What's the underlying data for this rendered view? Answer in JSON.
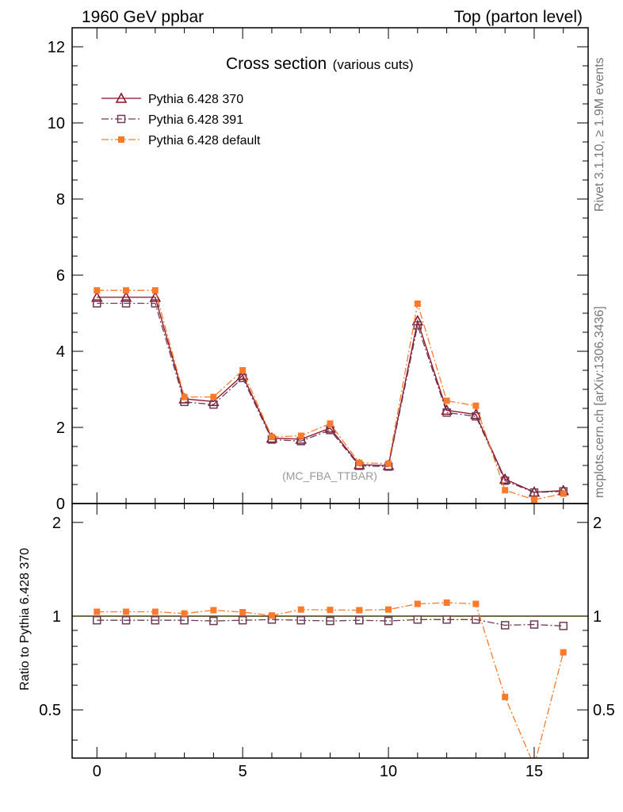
{
  "header": {
    "left": "1960 GeV ppbar",
    "right": "Top (parton level)"
  },
  "side_text": {
    "rivet": "Rivet 3.1.10, ≥ 1.9M events",
    "mcplots": "mcplots.cern.ch [arXiv:1306.3436]"
  },
  "plot_title": {
    "main": "Cross section",
    "sub": "(various cuts)"
  },
  "watermark": "(MC_FBA_TTBAR)",
  "ratio_ylabel": "Ratio to Pythia 6.428 370",
  "colors": {
    "p370": "#8b0e24",
    "p391": "#6e3a55",
    "pdefault": "#f97a2a",
    "refline": "#b8b800"
  },
  "chart_data": [
    {
      "type": "line",
      "panel": "main",
      "xlim": [
        -0.85,
        16.85
      ],
      "ylim": [
        0,
        12.5
      ],
      "yticks": [
        0,
        2,
        4,
        6,
        8,
        10,
        12
      ],
      "grid": false,
      "legend_position": "top-left",
      "x": [
        0,
        1,
        2,
        3,
        4,
        5,
        6,
        7,
        8,
        9,
        10,
        11,
        12,
        13,
        14,
        15,
        16
      ],
      "series": [
        {
          "name": "Pythia 6.428 370",
          "marker": "triangle-open",
          "line": "solid",
          "values": [
            5.42,
            5.42,
            5.42,
            2.75,
            2.68,
            3.37,
            1.72,
            1.69,
            1.98,
            1.02,
            1.0,
            4.8,
            2.45,
            2.34,
            0.64,
            0.3,
            0.34
          ]
        },
        {
          "name": "Pythia 6.428 391",
          "marker": "square-open",
          "line": "dash-dot",
          "values": [
            5.26,
            5.26,
            5.26,
            2.67,
            2.6,
            3.3,
            1.68,
            1.64,
            1.93,
            0.99,
            0.97,
            4.68,
            2.39,
            2.29,
            0.6,
            0.29,
            0.32
          ]
        },
        {
          "name": "Pythia 6.428 default",
          "marker": "square-filled",
          "line": "dash-dot",
          "values": [
            5.6,
            5.6,
            5.6,
            2.8,
            2.8,
            3.5,
            1.75,
            1.78,
            2.1,
            1.07,
            1.05,
            5.25,
            2.7,
            2.57,
            0.35,
            0.1,
            0.26
          ]
        }
      ]
    },
    {
      "type": "line",
      "panel": "ratio",
      "ylabel": "Ratio to Pythia 6.428 370",
      "xlim": [
        -0.85,
        16.85
      ],
      "ylim": [
        0.35,
        2.3
      ],
      "yscale": "log",
      "xticks": [
        0,
        5,
        10,
        15
      ],
      "yticks": [
        0.5,
        1,
        2
      ],
      "reference_line": 1,
      "x": [
        0,
        1,
        2,
        3,
        4,
        5,
        6,
        7,
        8,
        9,
        10,
        11,
        12,
        13,
        14,
        15,
        16
      ],
      "series": [
        {
          "name": "Pythia 6.428 391",
          "marker": "square-open",
          "line": "dash-dot",
          "values": [
            0.97,
            0.97,
            0.97,
            0.97,
            0.965,
            0.97,
            0.975,
            0.97,
            0.965,
            0.97,
            0.965,
            0.975,
            0.975,
            0.975,
            0.935,
            0.94,
            0.93
          ]
        },
        {
          "name": "Pythia 6.428 default",
          "marker": "square-filled",
          "line": "dash-dot",
          "values": [
            1.033,
            1.033,
            1.033,
            1.02,
            1.045,
            1.03,
            1.005,
            1.05,
            1.047,
            1.045,
            1.05,
            1.095,
            1.105,
            1.095,
            0.55,
            0.33,
            0.765
          ]
        }
      ]
    }
  ]
}
